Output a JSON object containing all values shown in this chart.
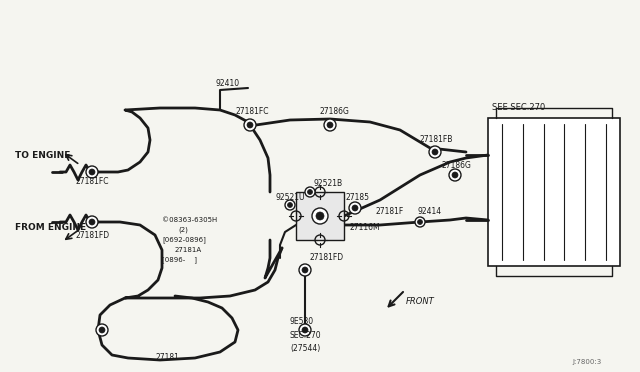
{
  "bg_color": "#f5f5f0",
  "line_color": "#1a1a1a",
  "text_color": "#1a1a1a",
  "fig_id": "J:7800:3",
  "labels": {
    "to_engine": "TO ENGINE",
    "from_engine": "FROM ENGINE",
    "see_sec270": "SEE SEC.270",
    "front": "FRONT",
    "part_92410": "92410",
    "part_27181FC_top": "27181FC",
    "part_27186G_top": "27186G",
    "part_27181FB": "27181FB",
    "part_27186G_right": "27186G",
    "part_92521B": "92521B",
    "part_92521U": "92521U",
    "part_27185": "27185",
    "part_08363": "©08363-6305H",
    "part_2": "(2)",
    "part_0692": "[0692-0896]",
    "part_27181A": "27181A",
    "part_0896": "[0896-    ]",
    "part_27181F": "27181F",
    "part_27116M": "27116M",
    "part_92414": "92414",
    "part_27181FC_left": "27181FC",
    "part_27181FD_left": "27181FD",
    "part_27181FD_mid": "27181FD",
    "part_27181": "27181",
    "part_9E580": "9E580",
    "part_sec270": "SEC.270",
    "part_27544": "(27544)"
  }
}
